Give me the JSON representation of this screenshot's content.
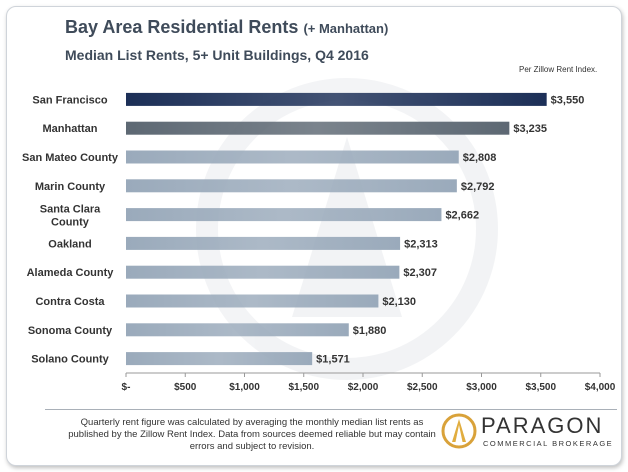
{
  "title": "Bay Area Residential Rents",
  "title_suffix": "(+ Manhattan)",
  "subtitle": "Median List Rents, 5+ Unit Buildings,  Q4 2016",
  "source_note": "Per Zillow Rent Index.",
  "footnote": "Quarterly rent figure was calculated by averaging the monthly median list rents as published by the Zillow Rent Index. Data from sources deemed reliable but may contain errors and subject to revision.",
  "logo": {
    "name": "PARAGON",
    "tagline": "COMMERCIAL BROKERAGE"
  },
  "colors": {
    "highlight_bar": "#1c2f57",
    "second_bar": "#5d6873",
    "other_bars": "#9aaabb",
    "axis_text": "#333333"
  },
  "chart_data": {
    "type": "bar",
    "orientation": "horizontal",
    "categories": [
      "San Francisco",
      "Manhattan",
      "San Mateo County",
      "Marin County",
      "Santa Clara County",
      "Oakland",
      "Alameda County",
      "Contra Costa",
      "Sonoma County",
      "Solano County"
    ],
    "values": [
      3550,
      3235,
      2808,
      2792,
      2662,
      2313,
      2307,
      2130,
      1880,
      1571
    ],
    "data_labels": [
      "$3,550",
      "$3,235",
      "$2,808",
      "$2,792",
      "$2,662",
      "$2,313",
      "$2,307",
      "$2,130",
      "$1,880",
      "$1,571"
    ],
    "xlim": [
      0,
      4000
    ],
    "xticks": [
      0,
      500,
      1000,
      1500,
      2000,
      2500,
      3000,
      3500,
      4000
    ],
    "xtick_labels": [
      "$-",
      "$500",
      "$1,000",
      "$1,500",
      "$2,000",
      "$2,500",
      "$3,000",
      "$3,500",
      "$4,000"
    ],
    "grid": false,
    "legend": "none"
  }
}
